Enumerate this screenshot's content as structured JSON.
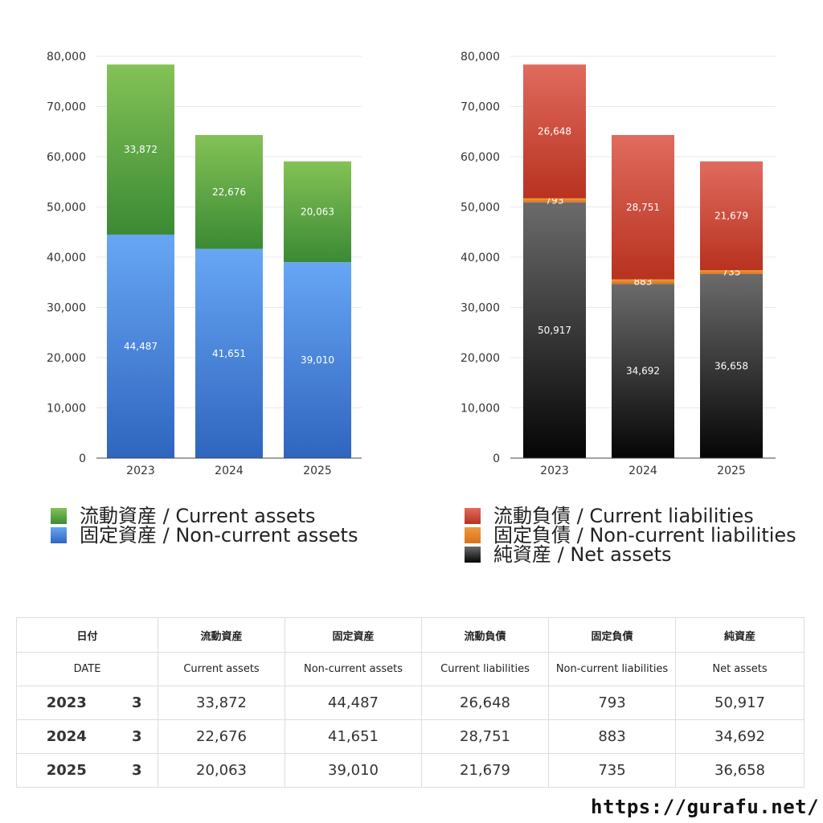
{
  "chart_data": [
    {
      "type": "bar",
      "stacked": true,
      "categories": [
        "2023",
        "2024",
        "2025"
      ],
      "series": [
        {
          "name": "固定資産 / Non-current assets",
          "values": [
            44487,
            41651,
            39010
          ],
          "color_top": "#67a6f5",
          "color_bottom": "#2f65be"
        },
        {
          "name": "流動資産 / Current assets",
          "values": [
            33872,
            22676,
            20063
          ],
          "color_top": "#84c256",
          "color_bottom": "#3b8a34"
        }
      ],
      "data_labels": [
        [
          "44,487",
          "41,651",
          "39,010"
        ],
        [
          "33,872",
          "22,676",
          "20,063"
        ]
      ],
      "ylim": [
        0,
        80000
      ],
      "yticks": [
        "0",
        "10,000",
        "20,000",
        "30,000",
        "40,000",
        "50,000",
        "60,000",
        "70,000",
        "80,000"
      ],
      "grid": true,
      "legend_placement": "bottom"
    },
    {
      "type": "bar",
      "stacked": true,
      "categories": [
        "2023",
        "2024",
        "2025"
      ],
      "series": [
        {
          "name": "純資産 / Net assets",
          "values": [
            50917,
            34692,
            36658
          ],
          "color_top": "#6b6b6b",
          "color_bottom": "#050505"
        },
        {
          "name": "固定負債 / Non-current liabilities",
          "values": [
            793,
            883,
            735
          ],
          "color_top": "#f09a3c",
          "color_bottom": "#d9721a"
        },
        {
          "name": "流動負債 / Current liabilities",
          "values": [
            26648,
            28751,
            21679
          ],
          "color_top": "#e06b5e",
          "color_bottom": "#b8321f"
        }
      ],
      "data_labels": [
        [
          "50,917",
          "34,692",
          "36,658"
        ],
        [
          "793",
          "883",
          "735"
        ],
        [
          "26,648",
          "28,751",
          "21,679"
        ]
      ],
      "ylim": [
        0,
        80000
      ],
      "yticks": [
        "0",
        "10,000",
        "20,000",
        "30,000",
        "40,000",
        "50,000",
        "60,000",
        "70,000",
        "80,000"
      ],
      "grid": true,
      "legend_placement": "bottom"
    }
  ],
  "legend_left": [
    {
      "label": "流動資産 / Current assets",
      "color": "#5aa64a"
    },
    {
      "label": "固定資産 / Non-current assets",
      "color": "#4a8ce0"
    }
  ],
  "legend_right": [
    {
      "label": "流動負債 / Current liabilities",
      "color": "#d24a3c"
    },
    {
      "label": "固定負債 / Non-current liabilities",
      "color": "#e8852c"
    },
    {
      "label": "純資産 / Net assets",
      "color": "#222222"
    }
  ],
  "table": {
    "header_jp": {
      "date": "日付",
      "c1": "流動資産",
      "c2": "固定資産",
      "c3": "流動負債",
      "c4": "固定負債",
      "c5": "純資産"
    },
    "header_en": {
      "date": "DATE",
      "c1": "Current assets",
      "c2": "Non-current assets",
      "c3": "Current liabilities",
      "c4": "Non-current liabilities",
      "c5": "Net assets"
    },
    "rows": [
      {
        "year": "2023",
        "month": "3",
        "c1": "33,872",
        "c2": "44,487",
        "c3": "26,648",
        "c4": "793",
        "c5": "50,917"
      },
      {
        "year": "2024",
        "month": "3",
        "c1": "22,676",
        "c2": "41,651",
        "c3": "28,751",
        "c4": "883",
        "c5": "34,692"
      },
      {
        "year": "2025",
        "month": "3",
        "c1": "20,063",
        "c2": "39,010",
        "c3": "21,679",
        "c4": "735",
        "c5": "36,658"
      }
    ]
  },
  "site_url": "https://gurafu.net/"
}
